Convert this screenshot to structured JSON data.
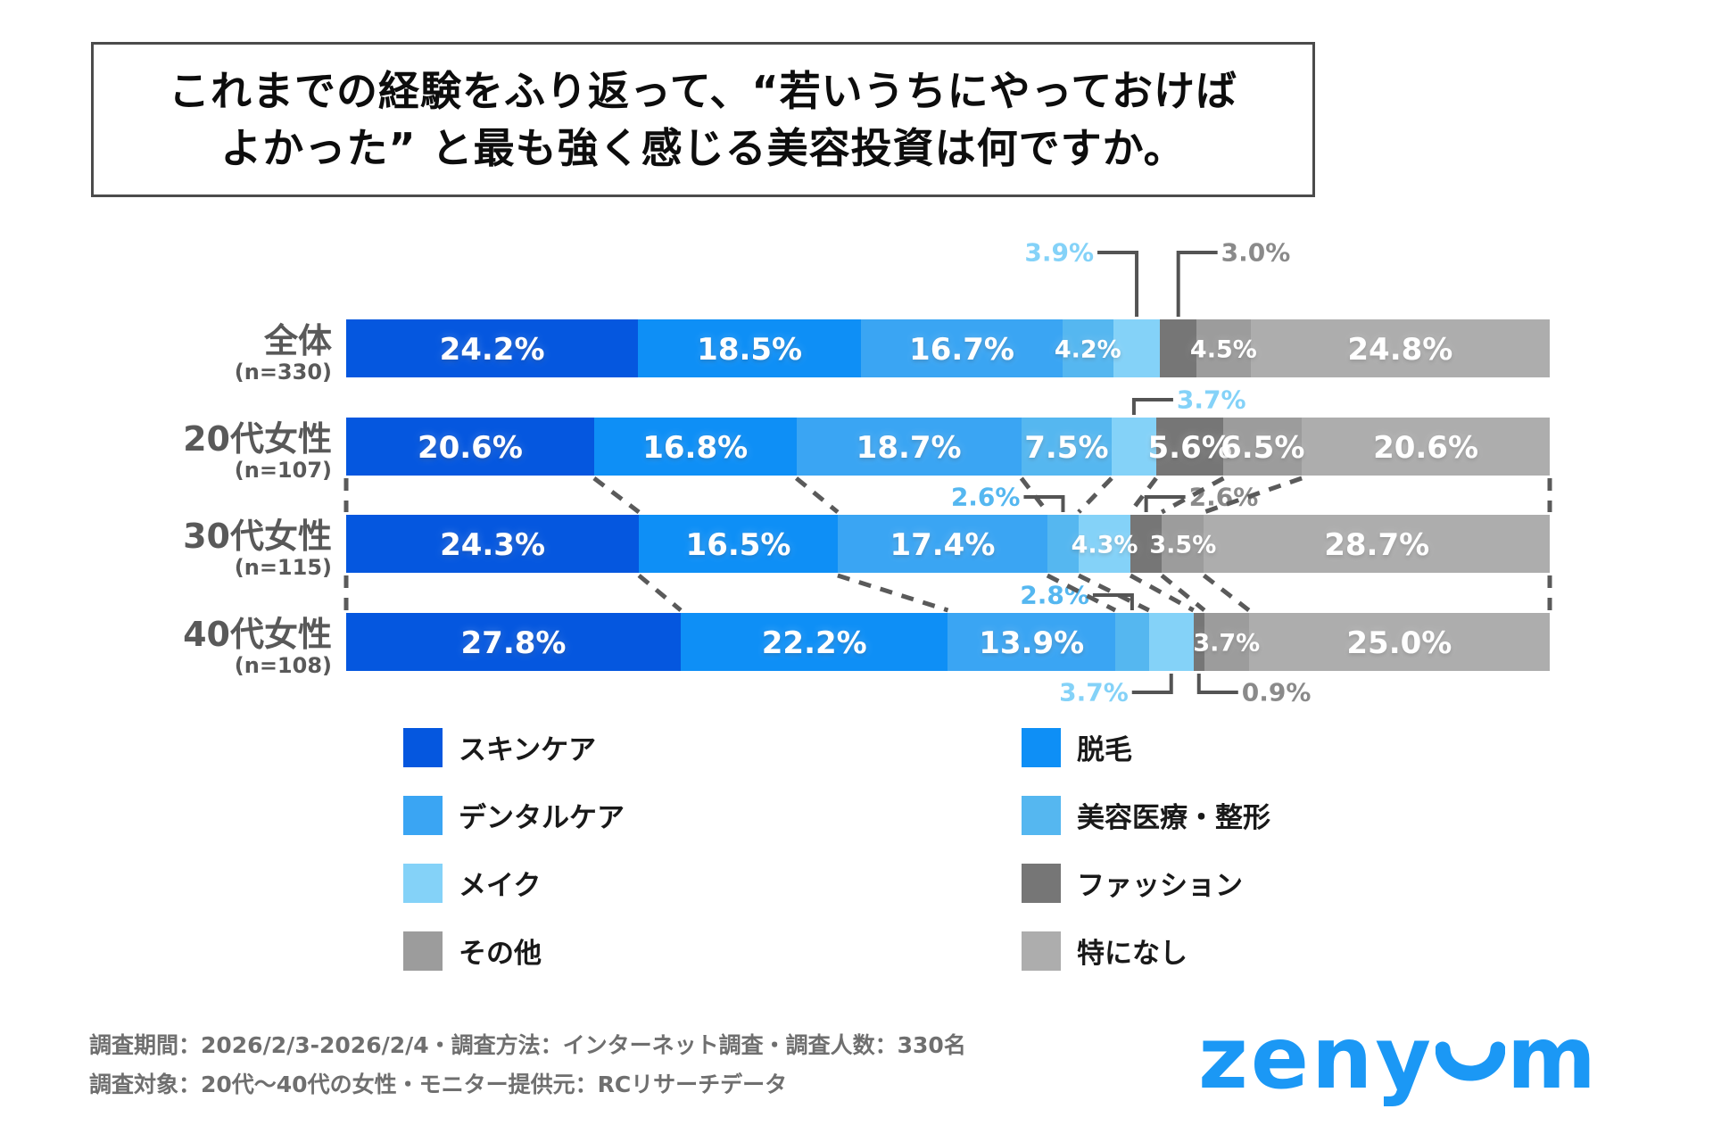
{
  "title": {
    "line1": "これまでの経験をふり返って、“若いうちにやっておけば",
    "line2": "よかった” と最も強く感じる美容投資は何ですか。"
  },
  "chart_data": {
    "type": "bar",
    "stacked": true,
    "orientation": "horizontal",
    "unit": "%",
    "xlim": [
      0,
      100
    ],
    "categories": [
      {
        "label": "スキンケア",
        "color": "#0557DF"
      },
      {
        "label": "脱毛",
        "color": "#0E8FF6"
      },
      {
        "label": "デンタルケア",
        "color": "#3AA5F3"
      },
      {
        "label": "美容医療・整形",
        "color": "#55B7F0"
      },
      {
        "label": "メイク",
        "color": "#84D2F8"
      },
      {
        "label": "ファッション",
        "color": "#767676"
      },
      {
        "label": "その他",
        "color": "#9C9C9C"
      },
      {
        "label": "特になし",
        "color": "#ADADAD"
      }
    ],
    "rows": [
      {
        "label": "全体",
        "n": "(n=330)",
        "values": [
          24.2,
          18.5,
          16.7,
          4.2,
          3.9,
          3.0,
          4.5,
          24.8
        ]
      },
      {
        "label": "20代女性",
        "n": "(n=107)",
        "values": [
          20.6,
          16.8,
          18.7,
          7.5,
          3.7,
          5.6,
          6.5,
          20.6
        ]
      },
      {
        "label": "30代女性",
        "n": "(n=115)",
        "values": [
          24.3,
          16.5,
          17.4,
          2.6,
          4.3,
          2.6,
          3.5,
          28.7
        ]
      },
      {
        "label": "40代女性",
        "n": "(n=108)",
        "values": [
          27.8,
          22.2,
          13.9,
          2.8,
          3.7,
          0.9,
          3.7,
          25.0
        ]
      }
    ],
    "callouts": [
      {
        "row": 0,
        "segment": 4,
        "position": "above",
        "text_side": "left",
        "color": "#84D2F8"
      },
      {
        "row": 0,
        "segment": 5,
        "position": "above",
        "text_side": "right",
        "color": "#8A8A8A"
      },
      {
        "row": 1,
        "segment": 4,
        "position": "above",
        "text_side": "right",
        "color": "#84D2F8"
      },
      {
        "row": 2,
        "segment": 3,
        "position": "above",
        "text_side": "left",
        "color": "#55B7F0"
      },
      {
        "row": 2,
        "segment": 5,
        "position": "above",
        "text_side": "right",
        "color": "#8A8A8A"
      },
      {
        "row": 3,
        "segment": 3,
        "position": "above",
        "text_side": "left",
        "color": "#55B7F0"
      },
      {
        "row": 3,
        "segment": 4,
        "position": "below",
        "text_side": "left",
        "color": "#84D2F8"
      },
      {
        "row": 3,
        "segment": 5,
        "position": "below",
        "text_side": "right",
        "color": "#8A8A8A"
      }
    ],
    "connector_gaps": [
      [
        1,
        2
      ],
      [
        2,
        3
      ]
    ],
    "line_color": "#545454",
    "dash_color": "#5A5A5A"
  },
  "footer": {
    "line1": "調査期間：2026/2/3-2026/2/4・調査方法：インターネット調査・調査人数：330名",
    "line2": "調査対象：20代～40代の女性・モニター提供元：RCリサーチデータ"
  },
  "logo": {
    "text": "zenyum",
    "color": "#1B98F5"
  }
}
